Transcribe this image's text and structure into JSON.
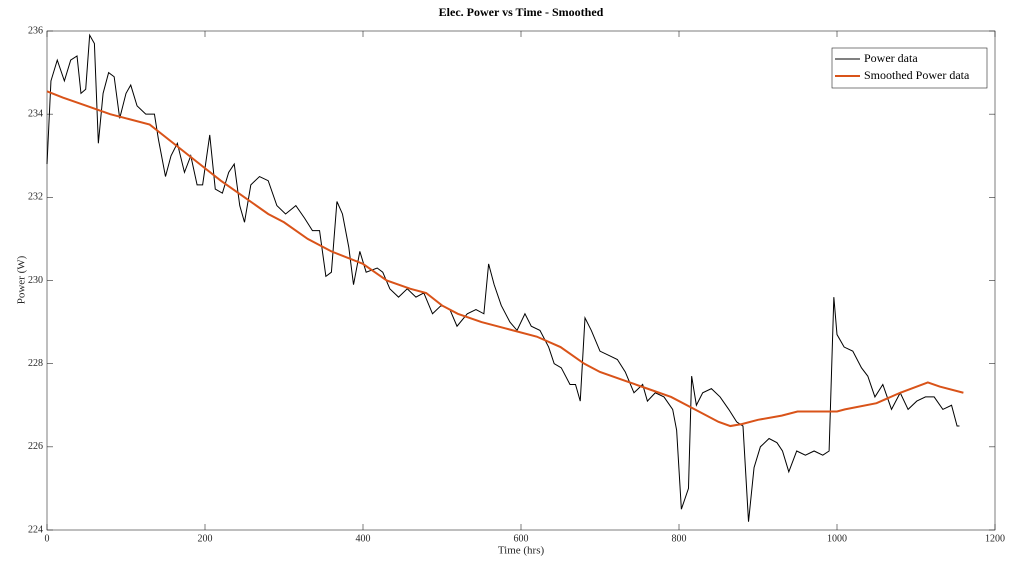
{
  "chart_data": {
    "type": "line",
    "title": "Elec. Power vs Time - Smoothed",
    "x_label": "Time (hrs)",
    "y_label": "Power (W)",
    "xlim": [
      0,
      1200
    ],
    "xticks": [
      0,
      200,
      400,
      600,
      800,
      1000,
      1200
    ],
    "ylim": [
      224,
      236
    ],
    "yticks": [
      224,
      226,
      228,
      230,
      232,
      234,
      236
    ],
    "legend": "top-right",
    "series": [
      {
        "name": "Power data",
        "color": "#000000",
        "x": [
          0,
          5,
          13,
          22,
          30,
          38,
          43,
          49,
          54,
          60,
          65,
          71,
          78,
          85,
          92,
          100,
          106,
          114,
          125,
          136,
          141,
          150,
          157,
          165,
          174,
          182,
          190,
          197,
          206,
          213,
          222,
          230,
          237,
          244,
          250,
          258,
          269,
          280,
          291,
          302,
          315,
          326,
          336,
          345,
          353,
          360,
          367,
          374,
          382,
          388,
          396,
          404,
          418,
          425,
          434,
          445,
          456,
          467,
          477,
          488,
          499,
          510,
          519,
          532,
          543,
          553,
          559,
          566,
          575,
          586,
          595,
          605,
          613,
          624,
          635,
          642,
          651,
          662,
          669,
          675,
          681,
          689,
          700,
          711,
          722,
          732,
          743,
          754,
          760,
          770,
          781,
          792,
          797,
          803,
          812,
          816,
          822,
          830,
          841,
          852,
          863,
          873,
          881,
          888,
          895,
          903,
          914,
          924,
          931,
          939,
          949,
          960,
          971,
          982,
          990,
          996,
          1000,
          1009,
          1020,
          1031,
          1039,
          1048,
          1058,
          1069,
          1080,
          1090,
          1101,
          1112,
          1123,
          1134,
          1145,
          1152,
          1155
        ],
        "values": [
          232.8,
          234.8,
          235.3,
          234.8,
          235.3,
          235.4,
          234.5,
          234.6,
          235.9,
          235.7,
          233.3,
          234.5,
          235.0,
          234.9,
          233.9,
          234.5,
          234.7,
          234.2,
          234.0,
          234.0,
          233.4,
          232.5,
          233.0,
          233.3,
          232.6,
          233.0,
          232.3,
          232.3,
          233.5,
          232.2,
          232.1,
          232.6,
          232.8,
          231.8,
          231.4,
          232.3,
          232.5,
          232.4,
          231.8,
          231.6,
          231.8,
          231.5,
          231.2,
          231.2,
          230.1,
          230.2,
          231.9,
          231.6,
          230.8,
          229.9,
          230.7,
          230.2,
          230.3,
          230.2,
          229.8,
          229.6,
          229.8,
          229.6,
          229.7,
          229.2,
          229.4,
          229.3,
          228.9,
          229.2,
          229.3,
          229.2,
          230.4,
          229.9,
          229.4,
          229.0,
          228.8,
          229.2,
          228.9,
          228.8,
          228.4,
          228.0,
          227.9,
          227.5,
          227.5,
          227.1,
          229.1,
          228.8,
          228.3,
          228.2,
          228.1,
          227.8,
          227.3,
          227.5,
          227.1,
          227.3,
          227.2,
          226.9,
          226.4,
          224.5,
          225.0,
          227.7,
          227.0,
          227.3,
          227.4,
          227.2,
          226.9,
          226.6,
          226.5,
          224.2,
          225.5,
          226.0,
          226.2,
          226.1,
          225.9,
          225.4,
          225.9,
          225.8,
          225.9,
          225.8,
          225.9,
          229.6,
          228.7,
          228.4,
          228.3,
          227.9,
          227.7,
          227.2,
          227.5,
          226.9,
          227.3,
          226.9,
          227.1,
          227.2,
          227.2,
          226.9,
          227.0,
          226.5,
          226.5
        ]
      },
      {
        "name": "Smoothed Power data",
        "color": "#d95319",
        "x": [
          0,
          20,
          50,
          80,
          100,
          130,
          160,
          180,
          200,
          220,
          250,
          280,
          300,
          330,
          360,
          400,
          430,
          460,
          480,
          500,
          520,
          550,
          580,
          620,
          650,
          680,
          700,
          730,
          760,
          790,
          820,
          850,
          865,
          880,
          900,
          930,
          950,
          1000,
          1010,
          1050,
          1080,
          1115,
          1130,
          1160
        ],
        "values": [
          234.55,
          234.4,
          234.2,
          234.0,
          233.9,
          233.75,
          233.3,
          233.0,
          232.7,
          232.4,
          232.0,
          231.6,
          231.4,
          231.0,
          230.7,
          230.4,
          230.0,
          229.8,
          229.7,
          229.4,
          229.2,
          229.0,
          228.85,
          228.65,
          228.4,
          228.0,
          227.8,
          227.6,
          227.4,
          227.2,
          226.9,
          226.6,
          226.5,
          226.55,
          226.65,
          226.75,
          226.85,
          226.85,
          226.9,
          227.05,
          227.3,
          227.55,
          227.45,
          227.3
        ]
      }
    ]
  }
}
